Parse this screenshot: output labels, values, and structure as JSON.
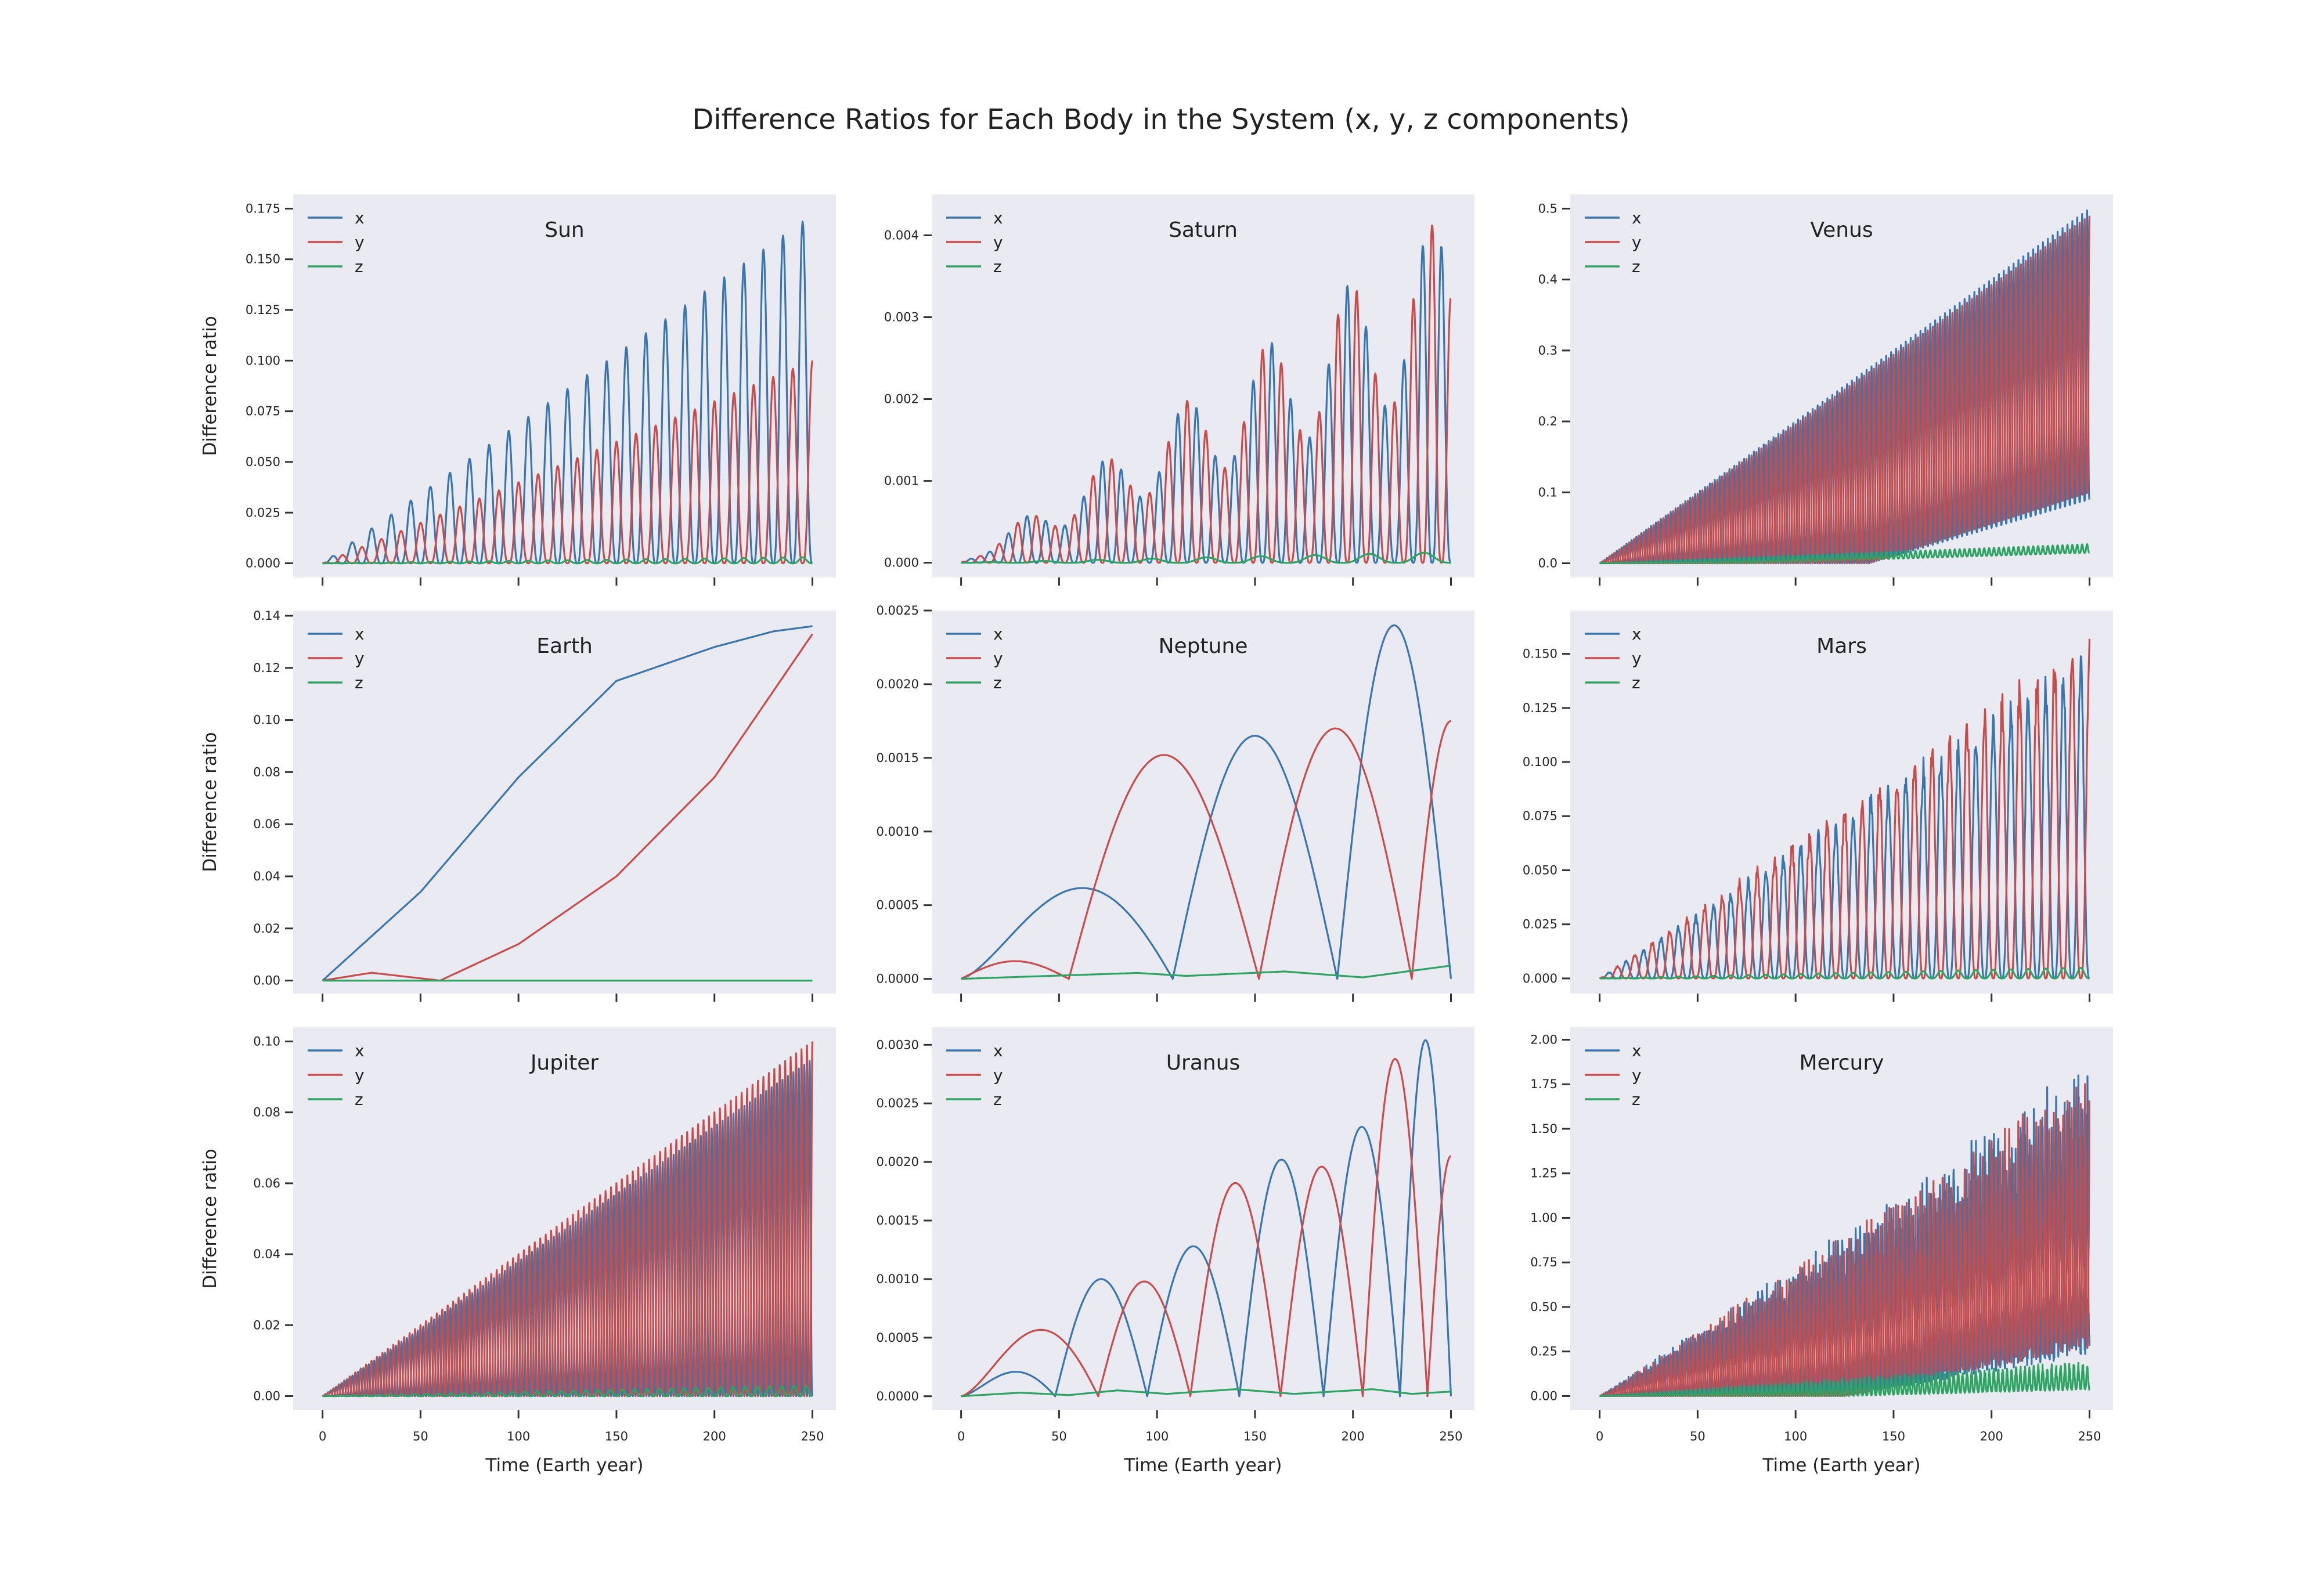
{
  "figure": {
    "title": "Difference Ratios for Each Body in the System (x, y, z components)",
    "background": "#ffffff",
    "axes_background": "#eaeaf2",
    "colors": {
      "x": "#3a75ad",
      "y": "#c94c4c",
      "z": "#2fa363"
    },
    "shared_x_label": "Time (Earth year)",
    "shared_y_label": "Difference ratio",
    "legend_placement": "upper-left",
    "grid": false
  },
  "chart_data": [
    {
      "type": "line",
      "title": "Sun",
      "xlabel": "",
      "ylabel": "Difference ratio",
      "xlim": [
        -15,
        262
      ],
      "ylim": [
        -0.007,
        0.182
      ],
      "xticks": [
        0,
        50,
        100,
        150,
        200,
        250
      ],
      "yticks": [
        0.0,
        0.025,
        0.05,
        0.075,
        0.1,
        0.125,
        0.15,
        0.175
      ],
      "decimals": 3,
      "show_xticklabels": false,
      "model": {
        "x": {
          "kind": "osc",
          "end": 0.172,
          "cycles": 25,
          "floor": 0.0
        },
        "y": {
          "kind": "osc",
          "end": 0.1,
          "cycles": 25,
          "floor": 0.0,
          "phase": 0.5
        },
        "z": {
          "kind": "osc",
          "end": 0.003,
          "cycles": 25,
          "floor": 0.0
        }
      },
      "series": [
        {
          "name": "x"
        },
        {
          "name": "y"
        },
        {
          "name": "z"
        }
      ]
    },
    {
      "type": "line",
      "title": "Saturn",
      "xlabel": "",
      "ylabel": "",
      "xlim": [
        -15,
        262
      ],
      "ylim": [
        -0.00018,
        0.0045
      ],
      "xticks": [
        0,
        50,
        100,
        150,
        200,
        250
      ],
      "yticks": [
        0.0,
        0.001,
        0.002,
        0.003,
        0.004
      ],
      "decimals": 3,
      "show_xticklabels": false,
      "model": {
        "x": {
          "kind": "osc",
          "end": 0.0043,
          "cycles": 26,
          "floor": 0.0,
          "beat": 0.5
        },
        "y": {
          "kind": "osc",
          "end": 0.0043,
          "cycles": 26,
          "floor": 0.0,
          "phase": 0.5,
          "beat": 0.5
        },
        "z": {
          "kind": "osc",
          "end": 0.00013,
          "cycles": 9,
          "floor": 0.0
        }
      },
      "series": [
        {
          "name": "x"
        },
        {
          "name": "y"
        },
        {
          "name": "z"
        }
      ]
    },
    {
      "type": "line",
      "title": "Venus",
      "xlabel": "",
      "ylabel": "",
      "xlim": [
        -15,
        262
      ],
      "ylim": [
        -0.02,
        0.52
      ],
      "xticks": [
        0,
        50,
        100,
        150,
        200,
        250
      ],
      "yticks": [
        0.0,
        0.1,
        0.2,
        0.3,
        0.4,
        0.5
      ],
      "decimals": 1,
      "show_xticklabels": false,
      "model": {
        "x": {
          "kind": "osc",
          "end": 0.5,
          "cycles": 100,
          "floor": 0.0,
          "floorEnd": 0.09,
          "floorStart": 0.55
        },
        "y": {
          "kind": "osc",
          "end": 0.49,
          "cycles": 100,
          "floor": 0.0,
          "phase": 0.5,
          "floorEnd": 0.1,
          "floorStart": 0.55
        },
        "z": {
          "kind": "osc",
          "end": 0.027,
          "cycles": 100,
          "floor": 0.0,
          "floorEnd": 0.015,
          "floorStart": 0.3
        }
      },
      "series": [
        {
          "name": "x"
        },
        {
          "name": "y"
        },
        {
          "name": "z"
        }
      ]
    },
    {
      "type": "line",
      "title": "Earth",
      "xlabel": "",
      "ylabel": "Difference ratio",
      "xlim": [
        -15,
        262
      ],
      "ylim": [
        -0.005,
        0.142
      ],
      "xticks": [
        0,
        50,
        100,
        150,
        200,
        250
      ],
      "yticks": [
        0.0,
        0.02,
        0.04,
        0.06,
        0.08,
        0.1,
        0.12,
        0.14
      ],
      "decimals": 2,
      "show_xticklabels": false,
      "model": {
        "x": {
          "kind": "pts",
          "pts": [
            [
              0,
              0
            ],
            [
              50,
              0.034
            ],
            [
              100,
              0.078
            ],
            [
              150,
              0.115
            ],
            [
              200,
              0.128
            ],
            [
              230,
              0.134
            ],
            [
              250,
              0.136
            ]
          ]
        },
        "y": {
          "kind": "pts",
          "pts": [
            [
              0,
              0
            ],
            [
              25,
              0.003
            ],
            [
              60,
              0.0
            ],
            [
              100,
              0.014
            ],
            [
              150,
              0.04
            ],
            [
              200,
              0.078
            ],
            [
              250,
              0.133
            ]
          ]
        },
        "z": {
          "kind": "pts",
          "pts": [
            [
              0,
              0
            ],
            [
              250,
              0
            ]
          ]
        }
      },
      "series": [
        {
          "name": "x"
        },
        {
          "name": "y"
        },
        {
          "name": "z"
        }
      ]
    },
    {
      "type": "line",
      "title": "Neptune",
      "xlabel": "",
      "ylabel": "",
      "xlim": [
        -15,
        262
      ],
      "ylim": [
        -0.0001,
        0.0025
      ],
      "xticks": [
        0,
        50,
        100,
        150,
        200,
        250
      ],
      "yticks": [
        0.0,
        0.0005,
        0.001,
        0.0015,
        0.002,
        0.0025
      ],
      "decimals": 4,
      "show_xticklabels": false,
      "model": {
        "x": {
          "kind": "arches",
          "zeros": [
            0,
            108,
            192
          ],
          "peaks": [
            0.0008,
            0.00165,
            0.0024
          ],
          "lead": 0.7,
          "endx": 250,
          "endy": 0.0021
        },
        "y": {
          "kind": "arches",
          "zeros": [
            0,
            55,
            152,
            230
          ],
          "peaks": [
            0.00012,
            0.00152,
            0.0017
          ],
          "endx": 250,
          "endy": 0.00175
        },
        "z": {
          "kind": "pts",
          "pts": [
            [
              0,
              0
            ],
            [
              90,
              4e-05
            ],
            [
              115,
              2e-05
            ],
            [
              165,
              5e-05
            ],
            [
              205,
              1e-05
            ],
            [
              250,
              9e-05
            ]
          ]
        }
      },
      "series": [
        {
          "name": "x"
        },
        {
          "name": "y"
        },
        {
          "name": "z"
        }
      ]
    },
    {
      "type": "line",
      "title": "Mars",
      "xlabel": "",
      "ylabel": "",
      "xlim": [
        -15,
        262
      ],
      "ylim": [
        -0.007,
        0.17
      ],
      "xticks": [
        0,
        50,
        100,
        150,
        200,
        250
      ],
      "yticks": [
        0.0,
        0.025,
        0.05,
        0.075,
        0.1,
        0.125,
        0.15
      ],
      "decimals": 3,
      "show_xticklabels": false,
      "model": {
        "x": {
          "kind": "osc",
          "end": 0.155,
          "cycles": 28,
          "floor": 0.0,
          "noise": 0.12
        },
        "y": {
          "kind": "osc",
          "end": 0.162,
          "cycles": 28,
          "floor": 0.0,
          "phase": 0.5,
          "noise": 0.12
        },
        "z": {
          "kind": "osc",
          "end": 0.005,
          "cycles": 28,
          "floor": 0.0
        }
      },
      "series": [
        {
          "name": "x"
        },
        {
          "name": "y"
        },
        {
          "name": "z"
        }
      ]
    },
    {
      "type": "line",
      "title": "Jupiter",
      "xlabel": "Time (Earth year)",
      "ylabel": "Difference ratio",
      "xlim": [
        -15,
        262
      ],
      "ylim": [
        -0.004,
        0.104
      ],
      "xticks": [
        0,
        50,
        100,
        150,
        200,
        250
      ],
      "yticks": [
        0.0,
        0.02,
        0.04,
        0.06,
        0.08,
        0.1
      ],
      "decimals": 2,
      "show_xticklabels": true,
      "model": {
        "x": {
          "kind": "osc",
          "end": 0.095,
          "cycles": 90,
          "floor": 0.0
        },
        "y": {
          "kind": "osc",
          "end": 0.1,
          "cycles": 90,
          "floor": 0.0,
          "phase": 0.5
        },
        "z": {
          "kind": "osc",
          "end": 0.003,
          "cycles": 40,
          "floor": 0.0
        }
      },
      "series": [
        {
          "name": "x"
        },
        {
          "name": "y"
        },
        {
          "name": "z"
        }
      ]
    },
    {
      "type": "line",
      "title": "Uranus",
      "xlabel": "Time (Earth year)",
      "ylabel": "",
      "xlim": [
        -15,
        262
      ],
      "ylim": [
        -0.00012,
        0.00315
      ],
      "xticks": [
        0,
        50,
        100,
        150,
        200,
        250
      ],
      "yticks": [
        0.0,
        0.0005,
        0.001,
        0.0015,
        0.002,
        0.0025,
        0.003
      ],
      "decimals": 4,
      "show_xticklabels": true,
      "model": {
        "x": {
          "kind": "arches",
          "zeros": [
            0,
            48,
            95,
            142,
            185,
            224
          ],
          "peaks": [
            0.00028,
            0.001,
            0.00128,
            0.00202,
            0.0023,
            0.00304
          ],
          "lead": 0.8,
          "endx": 250,
          "endy": 0.00215
        },
        "y": {
          "kind": "arches",
          "zeros": [
            0,
            70,
            117,
            163,
            205,
            238
          ],
          "peaks": [
            0.00076,
            0.00098,
            0.00182,
            0.00196,
            0.00288
          ],
          "lead": 0.8,
          "endx": 250,
          "endy": 0.00205
        },
        "z": {
          "kind": "pts",
          "pts": [
            [
              0,
              0
            ],
            [
              30,
              3e-05
            ],
            [
              55,
              1e-05
            ],
            [
              80,
              5e-05
            ],
            [
              105,
              2e-05
            ],
            [
              140,
              6e-05
            ],
            [
              170,
              2e-05
            ],
            [
              210,
              6e-05
            ],
            [
              230,
              2e-05
            ],
            [
              250,
              4e-05
            ]
          ]
        }
      },
      "series": [
        {
          "name": "x"
        },
        {
          "name": "y"
        },
        {
          "name": "z"
        }
      ]
    },
    {
      "type": "line",
      "title": "Mercury",
      "xlabel": "Time (Earth year)",
      "ylabel": "",
      "xlim": [
        -15,
        262
      ],
      "ylim": [
        -0.08,
        2.07
      ],
      "xticks": [
        0,
        50,
        100,
        150,
        200,
        250
      ],
      "yticks": [
        0.0,
        0.25,
        0.5,
        0.75,
        1.0,
        1.25,
        1.5,
        1.75,
        2.0
      ],
      "decimals": 2,
      "show_xticklabels": true,
      "model": {
        "x": {
          "kind": "osc",
          "end": 1.9,
          "cycles": 110,
          "floor": 0.0,
          "noise": 0.35,
          "floorEnd": 0.35,
          "floorStart": 0.5
        },
        "y": {
          "kind": "osc",
          "end": 1.85,
          "cycles": 110,
          "floor": 0.0,
          "phase": 0.5,
          "noise": 0.35,
          "floorEnd": 0.4,
          "floorStart": 0.5
        },
        "z": {
          "kind": "osc",
          "end": 0.2,
          "cycles": 110,
          "floor": 0.0,
          "noise": 0.3,
          "floorEnd": 0.05,
          "floorStart": 0.5
        }
      },
      "series": [
        {
          "name": "x"
        },
        {
          "name": "y"
        },
        {
          "name": "z"
        }
      ]
    }
  ]
}
